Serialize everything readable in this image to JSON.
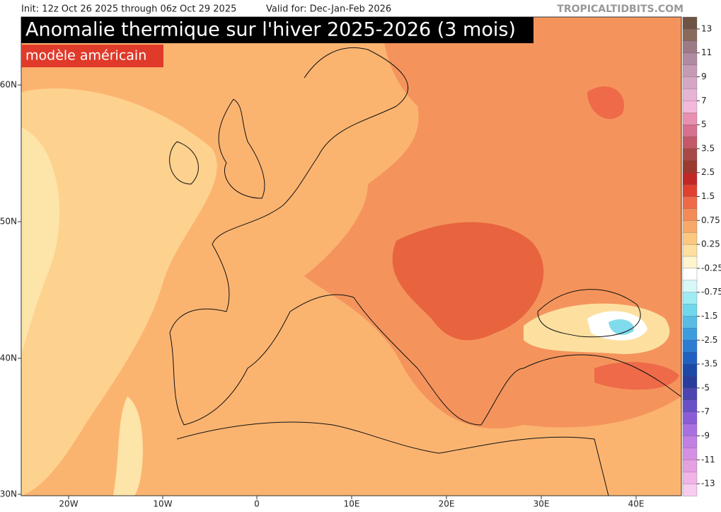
{
  "header": {
    "init": "Init: 12z Oct 26 2025 through 06z Oct 29 2025",
    "valid": "Valid for: Dec-Jan-Feb 2026",
    "site": "TROPICALTIDBITS.COM"
  },
  "title": "Anomalie thermique sur l'hiver 2025-2026 (3 mois)",
  "subtitle": "modèle américain",
  "colorbar": {
    "labels": [
      "13",
      "11",
      "9",
      "7",
      "5",
      "3.5",
      "2.5",
      "1.5",
      "0.75",
      "0.25",
      "-0.25",
      "-0.75",
      "-1.5",
      "-2.5",
      "-3.5",
      "-5",
      "-7",
      "-9",
      "-11",
      "-13"
    ],
    "colors": [
      "#6e5444",
      "#8a6a5c",
      "#9c7a86",
      "#b08aa0",
      "#c49ab4",
      "#d4a8c4",
      "#e6b4d4",
      "#f4b8dc",
      "#e890b0",
      "#d87090",
      "#c45868",
      "#a84848",
      "#9c3a30",
      "#c02828",
      "#e04030",
      "#ee6a48",
      "#f48a58",
      "#f8a868",
      "#fcc880",
      "#fde0a0",
      "#fef4d0",
      "#ffffff",
      "#d8f8f8",
      "#a0ecf4",
      "#70d8ec",
      "#58bce4",
      "#3c9ce0",
      "#2c7cd4",
      "#2060c0",
      "#1c48a8",
      "#283c9c",
      "#4c44b0",
      "#6850c8",
      "#8c5cd8",
      "#a870e0",
      "#c080e4",
      "#d490e4",
      "#e4a0e0",
      "#f0b4e8",
      "#f8ccf0"
    ]
  },
  "axes": {
    "lat": [
      "60N",
      "50N",
      "40N",
      "30N"
    ],
    "lon": [
      "20W",
      "10W",
      "0",
      "10E",
      "20E",
      "30E",
      "40E"
    ]
  }
}
